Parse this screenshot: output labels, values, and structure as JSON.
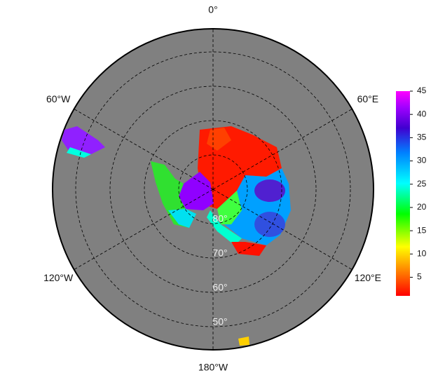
{
  "map": {
    "meridians": [
      {
        "value": 0,
        "label": "0°"
      },
      {
        "value": 60,
        "label": "60°E"
      },
      {
        "value": 120,
        "label": "120°E"
      },
      {
        "value": 180,
        "label": "180°W"
      },
      {
        "value": -120,
        "label": "120°W"
      },
      {
        "value": -60,
        "label": "60°W"
      }
    ],
    "parallels": [
      {
        "value": 80,
        "label": "80°"
      },
      {
        "value": 70,
        "label": "70°"
      },
      {
        "value": 60,
        "label": "60°"
      },
      {
        "value": 50,
        "label": "50°"
      }
    ],
    "colorbar": {
      "lim": [
        1,
        45
      ],
      "ticks": [
        5,
        10,
        15,
        20,
        25,
        30,
        35,
        40,
        45
      ]
    }
  }
}
